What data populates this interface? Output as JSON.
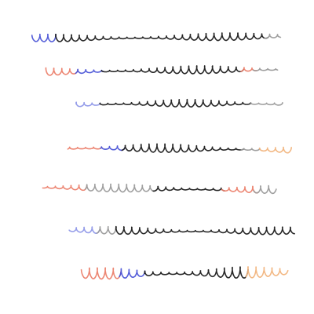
{
  "colors": {
    "background": "#ffffff",
    "black": "#1a1a1a",
    "gray": "#9a9a9a",
    "blue": "#4a54d6",
    "light_blue": "#8e96e8",
    "salmon": "#ec7f6a",
    "peach": "#f2b47c"
  },
  "strokes": [
    {
      "id": "stroke-1",
      "segments": [
        {
          "color": "blue",
          "until": 0.09
        },
        {
          "color": "black",
          "until": 0.94
        },
        {
          "color": "gray",
          "until": 1.0
        }
      ]
    },
    {
      "id": "stroke-2",
      "segments": [
        {
          "color": "salmon",
          "until": 0.13
        },
        {
          "color": "blue",
          "until": 0.25
        },
        {
          "color": "black",
          "until": 0.84
        },
        {
          "color": "salmon",
          "until": 0.9
        },
        {
          "color": "gray",
          "until": 1.0
        }
      ]
    },
    {
      "id": "stroke-3",
      "segments": [
        {
          "color": "light_blue",
          "until": 0.12
        },
        {
          "color": "black",
          "until": 0.85
        },
        {
          "color": "gray",
          "until": 1.0
        }
      ]
    },
    {
      "id": "stroke-4",
      "segments": [
        {
          "color": "salmon",
          "until": 0.15
        },
        {
          "color": "blue",
          "until": 0.25
        },
        {
          "color": "black",
          "until": 0.78
        },
        {
          "color": "gray",
          "until": 0.86
        },
        {
          "color": "peach",
          "until": 1.0
        }
      ]
    },
    {
      "id": "stroke-5",
      "segments": [
        {
          "color": "salmon",
          "until": 0.18
        },
        {
          "color": "gray",
          "until": 0.48
        },
        {
          "color": "black",
          "until": 0.78
        },
        {
          "color": "salmon",
          "until": 0.92
        },
        {
          "color": "gray",
          "until": 1.0
        }
      ]
    },
    {
      "id": "stroke-6",
      "segments": [
        {
          "color": "light_blue",
          "until": 0.12
        },
        {
          "color": "gray",
          "until": 0.2
        },
        {
          "color": "black",
          "until": 1.0
        }
      ]
    },
    {
      "id": "stroke-7",
      "segments": [
        {
          "color": "salmon",
          "until": 0.18
        },
        {
          "color": "blue",
          "until": 0.3
        },
        {
          "color": "black",
          "until": 0.8
        },
        {
          "color": "peach",
          "until": 1.0
        }
      ]
    }
  ]
}
